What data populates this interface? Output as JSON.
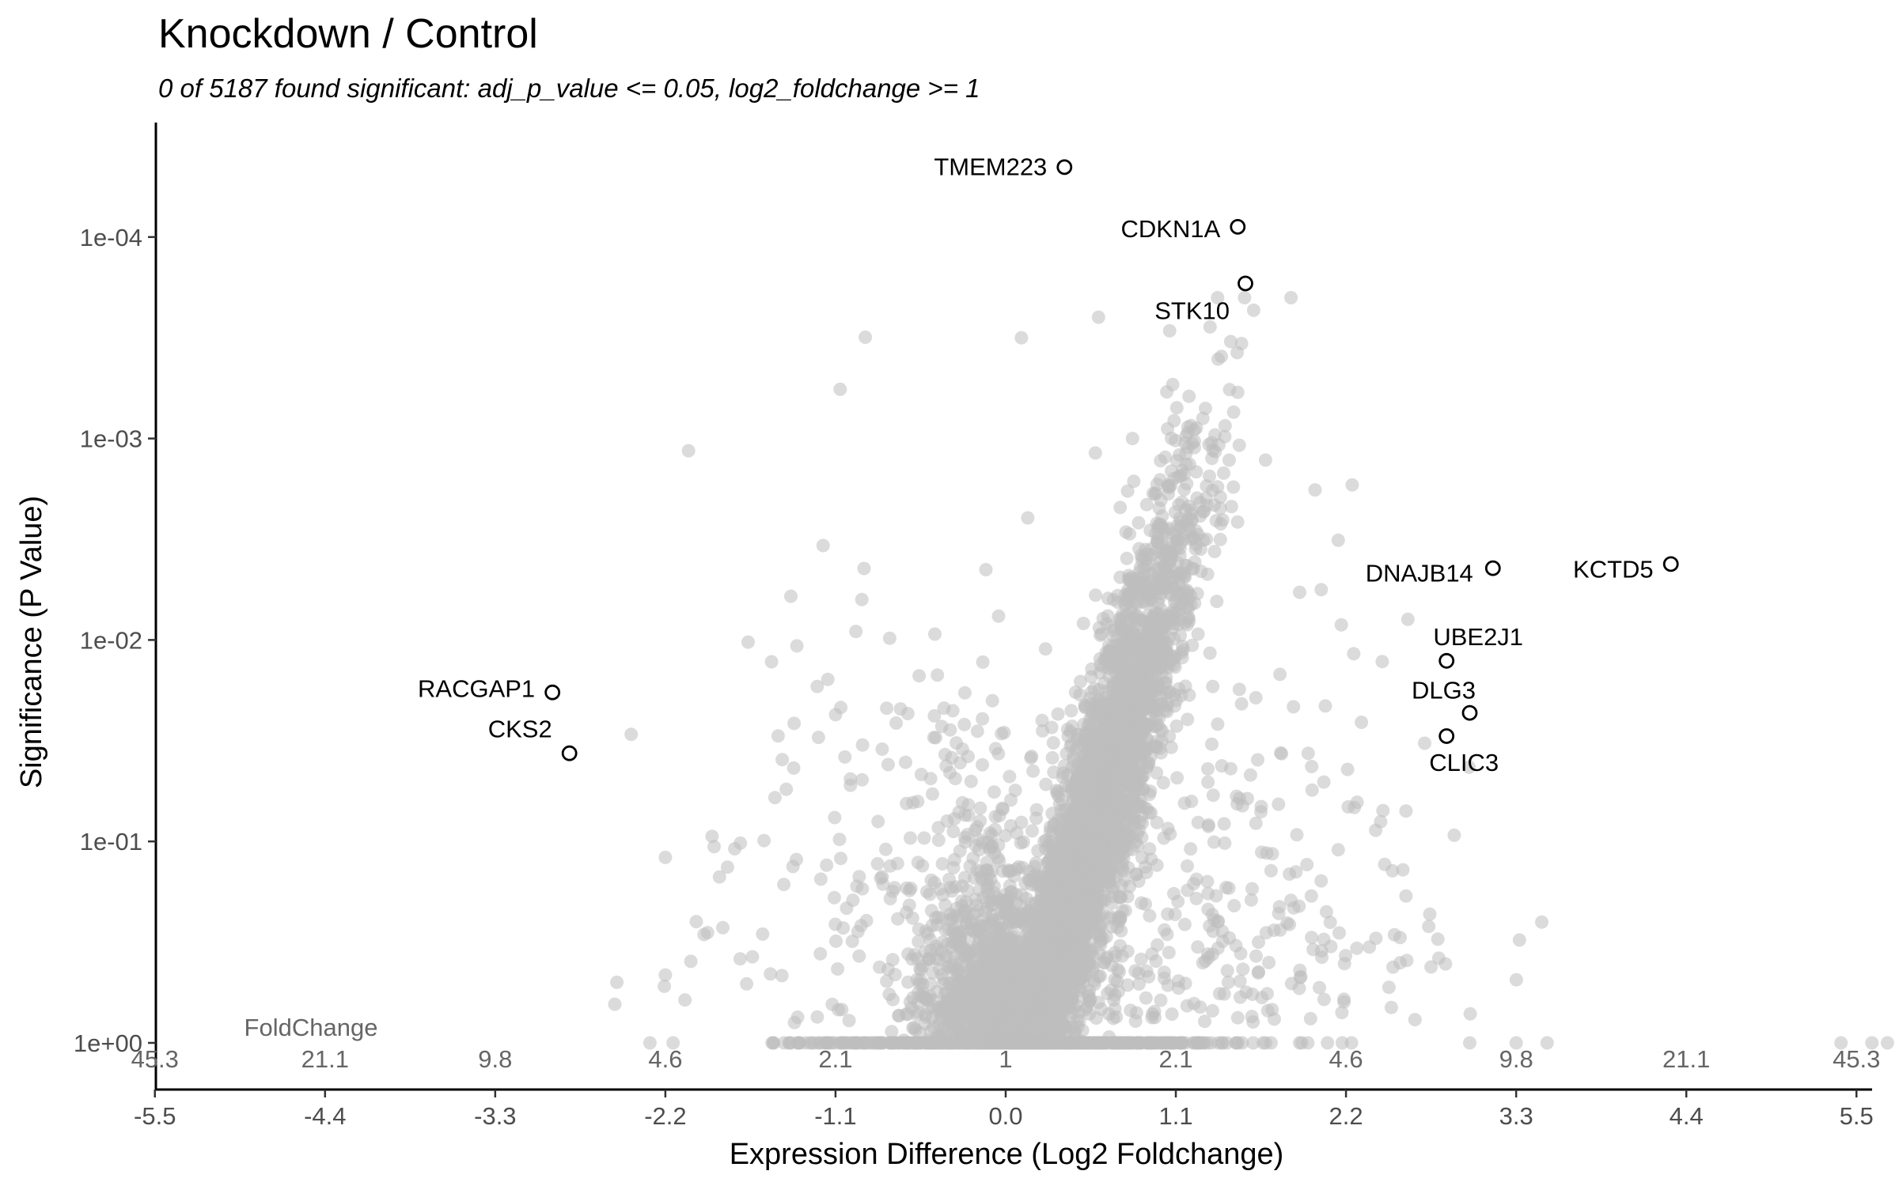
{
  "chart_data": {
    "type": "scatter",
    "title": "Knockdown / Control",
    "subtitle": "0 of 5187 found significant: adj_p_value <= 0.05, log2_foldchange >= 1",
    "xlabel": "Expression Difference (Log2 Foldchange)",
    "ylabel": "Significance (P Value)",
    "xlim": [
      -6.2,
      6.2
    ],
    "y_scale": "log10-reversed",
    "ylim": [
      1.8,
      3.3e-05
    ],
    "x_ticks": [
      -5.5,
      -4.4,
      -3.3,
      -2.2,
      -1.1,
      0.0,
      1.1,
      2.2,
      3.3,
      4.4,
      5.5
    ],
    "x_tick_labels": [
      "-5.5",
      "-4.4",
      "-3.3",
      "-2.2",
      "-1.1",
      "0.0",
      "1.1",
      "2.2",
      "3.3",
      "4.4",
      "5.5"
    ],
    "y_ticks": [
      1,
      0.1,
      0.01,
      0.001,
      0.0001
    ],
    "y_tick_labels": [
      "1e+00",
      "1e-01",
      "1e-02",
      "1e-03",
      "1e-04"
    ],
    "foldchange_header": "FoldChange",
    "foldchange_labels": [
      "45.3",
      "21.1",
      "9.8",
      "4.6",
      "2.1",
      "1",
      "2.1",
      "4.6",
      "9.8",
      "21.1",
      "45.3"
    ],
    "point_color": "#bdbdbd",
    "highlight_color": "#000000",
    "grid": false,
    "total_points": 5187,
    "highlighted": [
      {
        "gene": "TMEM223",
        "x": 0.38,
        "p": 4.5e-05
      },
      {
        "gene": "CDKN1A",
        "x": 1.5,
        "p": 8.9e-05
      },
      {
        "gene": "STK10",
        "x": 1.55,
        "p": 0.00017
      },
      {
        "gene": "DNAJB14",
        "x": 3.15,
        "p": 0.0044
      },
      {
        "gene": "KCTD5",
        "x": 4.3,
        "p": 0.0042
      },
      {
        "gene": "UBE2J1",
        "x": 2.85,
        "p": 0.0127
      },
      {
        "gene": "DLG3",
        "x": 3.0,
        "p": 0.023
      },
      {
        "gene": "CLIC3",
        "x": 2.85,
        "p": 0.03
      },
      {
        "gene": "RACGAP1",
        "x": -2.93,
        "p": 0.0182
      },
      {
        "gene": "CKS2",
        "x": -2.82,
        "p": 0.0365
      }
    ],
    "background_sample": [
      {
        "x": 0.6,
        "p": 0.00025
      },
      {
        "x": -1.07,
        "p": 0.00057
      },
      {
        "x": 1.08,
        "p": 0.00054
      },
      {
        "x": 1.5,
        "p": 0.00059
      },
      {
        "x": -2.05,
        "p": 0.00115
      },
      {
        "x": 0.82,
        "p": 0.001
      },
      {
        "x": 0.58,
        "p": 0.00118
      },
      {
        "x": 1.22,
        "p": 0.00111
      },
      {
        "x": 1.13,
        "p": 0.00153
      },
      {
        "x": 1.68,
        "p": 0.00128
      },
      {
        "x": 2.0,
        "p": 0.0018
      },
      {
        "x": 2.24,
        "p": 0.0017
      },
      {
        "x": 0.74,
        "p": 0.0022
      },
      {
        "x": -1.18,
        "p": 0.0034
      },
      {
        "x": 2.15,
        "p": 0.0032
      },
      {
        "x": -0.93,
        "p": 0.0063
      },
      {
        "x": 1.9,
        "p": 0.0058
      },
      {
        "x": 2.6,
        "p": 0.0079
      },
      {
        "x": -1.35,
        "p": 0.0107
      },
      {
        "x": -0.75,
        "p": 0.0098
      },
      {
        "x": 2.25,
        "p": 0.0117
      },
      {
        "x": -1.15,
        "p": 0.0157
      },
      {
        "x": -1.1,
        "p": 0.0235
      },
      {
        "x": -0.68,
        "p": 0.022
      },
      {
        "x": -2.2,
        "p": 0.12
      },
      {
        "x": -1.85,
        "p": 0.15
      },
      {
        "x": 2.45,
        "p": 0.13
      },
      {
        "x": 2.5,
        "p": 0.14
      },
      {
        "x": 2.15,
        "p": 0.11
      },
      {
        "x": 2.55,
        "p": 0.3
      },
      {
        "x": 2.8,
        "p": 0.38
      },
      {
        "x": 2.55,
        "p": 0.4
      },
      {
        "x": -2.0,
        "p": 0.25
      },
      {
        "x": -2.2,
        "p": 0.46
      },
      {
        "x": 2.75,
        "p": 0.42
      },
      {
        "x": -1.95,
        "p": 0.29
      },
      {
        "x": -2.3,
        "p": 1.0
      },
      {
        "x": -2.15,
        "p": 1.0
      },
      {
        "x": -1.5,
        "p": 1.0
      },
      {
        "x": -1.4,
        "p": 1.0
      },
      {
        "x": 3.0,
        "p": 1.0
      },
      {
        "x": 3.3,
        "p": 1.0
      },
      {
        "x": 3.5,
        "p": 1.0
      },
      {
        "x": 5.4,
        "p": 1.0
      },
      {
        "x": 5.6,
        "p": 1.0
      },
      {
        "x": 5.7,
        "p": 1.0
      },
      {
        "x": 1.9,
        "p": 1.0
      },
      {
        "x": 1.6,
        "p": 1.0
      }
    ]
  }
}
